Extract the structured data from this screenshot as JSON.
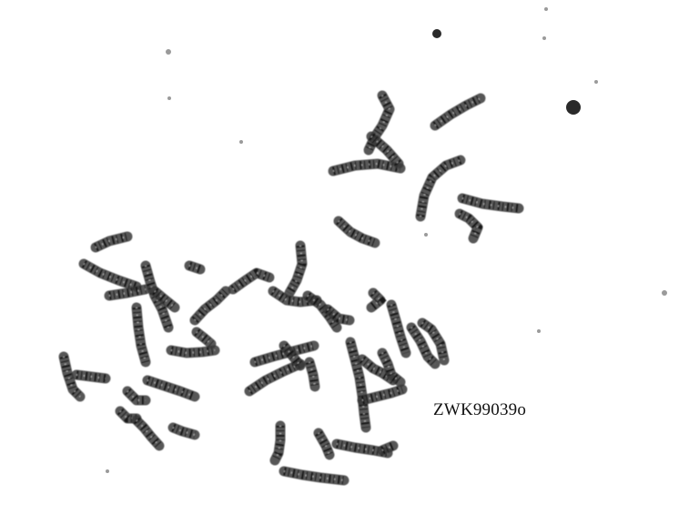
{
  "image": {
    "background_color": "#ffffff",
    "chromosome_color": "#3a3a3a",
    "band_color": "#111111",
    "specimen_label": "ZWK99039o"
  }
}
